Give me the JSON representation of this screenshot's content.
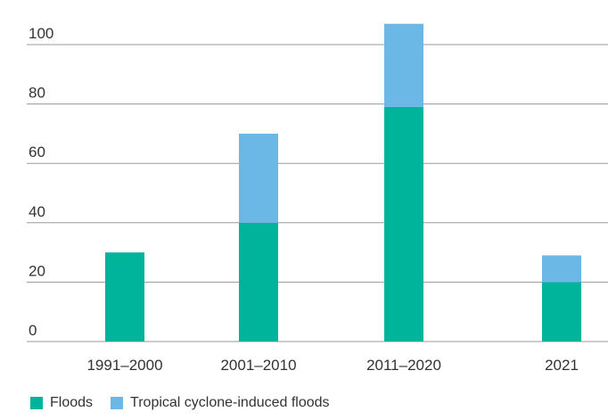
{
  "chart_data": {
    "type": "bar",
    "stacked": true,
    "categories": [
      "1991–2000",
      "2001–2010",
      "2011–2020",
      "2021"
    ],
    "series": [
      {
        "name": "Floods",
        "values": [
          30,
          40,
          79,
          20
        ],
        "color": "#00b39b"
      },
      {
        "name": "Tropical cyclone-induced floods",
        "values": [
          0,
          30,
          28,
          9
        ],
        "color": "#6bb8e6"
      }
    ],
    "ylim": [
      0,
      100
    ],
    "yticks": [
      0,
      20,
      40,
      60,
      80,
      100
    ],
    "grid": true,
    "legend_position": "bottom-left"
  }
}
